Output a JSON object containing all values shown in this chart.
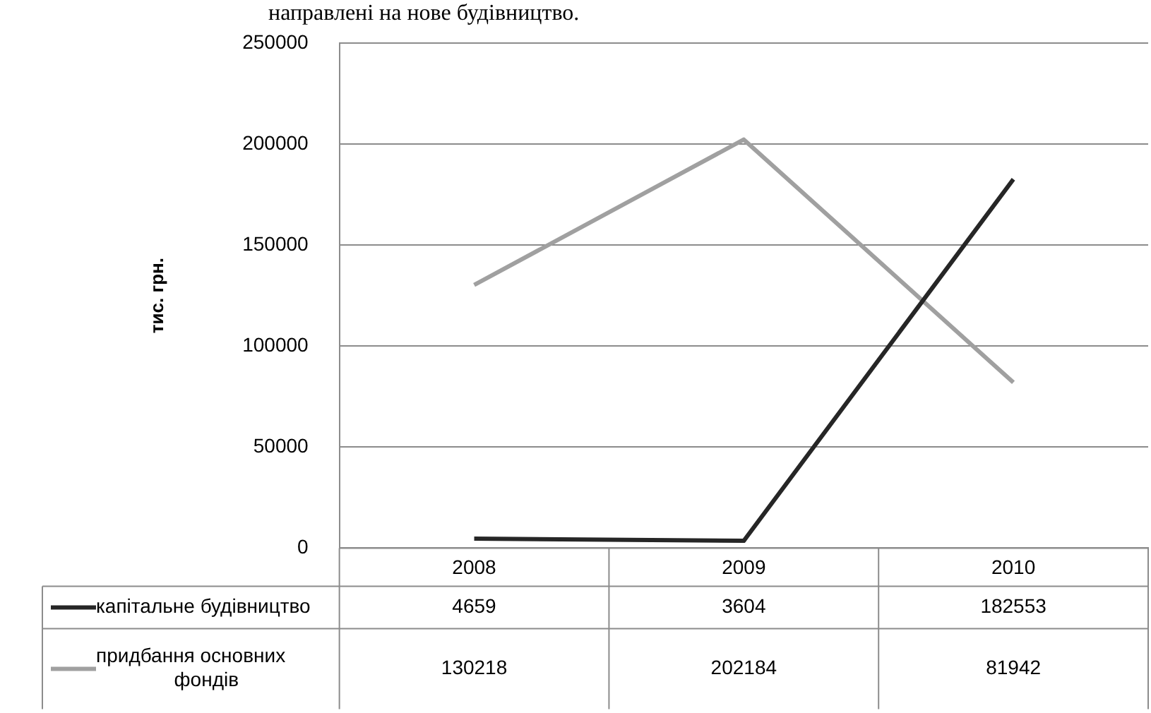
{
  "chart_data": {
    "type": "line",
    "ylabel": "тис. грн.",
    "annotations": [
      "направлені на нове будівництво."
    ],
    "categories": [
      "2008",
      "2009",
      "2010"
    ],
    "series": [
      {
        "name": "капітальне будівництво",
        "color": "#262626",
        "values": [
          4659,
          3604,
          182553
        ]
      },
      {
        "name": "придбання основних фондів",
        "color": "#a0a0a0",
        "values": [
          130218,
          202184,
          81942
        ]
      }
    ],
    "ylim": [
      0,
      250000
    ],
    "yticks": [
      0,
      50000,
      100000,
      150000,
      200000,
      250000
    ],
    "grid": "y",
    "legend": "bottom",
    "data_labels": true,
    "marker": "none",
    "line_style": "solid"
  }
}
